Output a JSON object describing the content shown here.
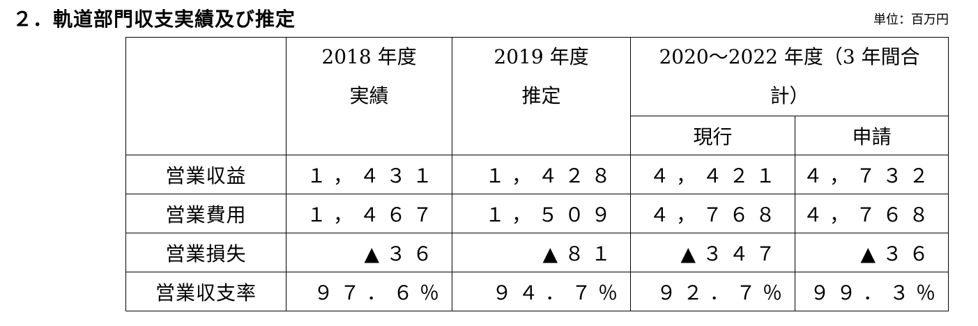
{
  "heading": "２．軌道部門収支実績及び推定",
  "unit": "単位：百万円",
  "table": {
    "headers": {
      "col1_line1": "2018 年度",
      "col1_line2": "実績",
      "col2_line1": "2019 年度",
      "col2_line2": "推定",
      "col3_line1": "2020～2022 年度（3 年間合",
      "col3_line2": "計）",
      "col3_sub1": "現行",
      "col3_sub2": "申請"
    },
    "rows": [
      {
        "label": "営業収益",
        "values": [
          "１，４３１",
          "１，４２８",
          "４，４２１",
          "４，７３２"
        ]
      },
      {
        "label": "営業費用",
        "values": [
          "１，４６７",
          "１，５０９",
          "４，７６８",
          "４，７６８"
        ]
      },
      {
        "label": "営業損失",
        "values": [
          "▲３６",
          "▲８１",
          "▲３４７",
          "▲３６"
        ]
      },
      {
        "label": "営業収支率",
        "values": [
          "９７．６％",
          "９４．７％",
          "９２．７％",
          "９９．３％"
        ]
      }
    ]
  }
}
